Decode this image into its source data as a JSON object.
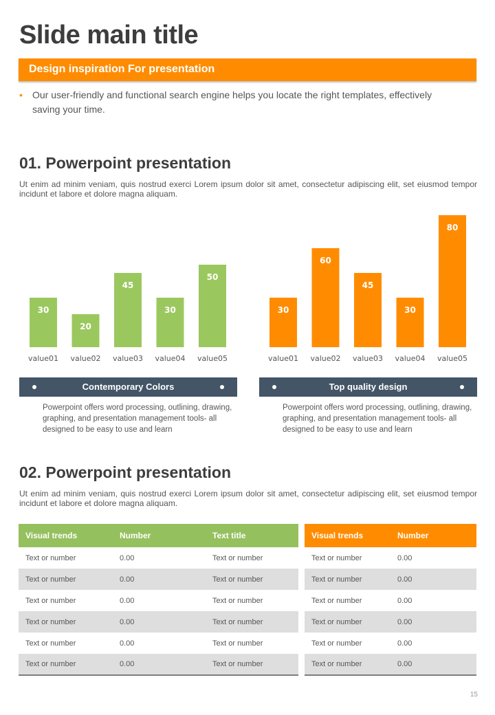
{
  "slide": {
    "title": "Slide main title",
    "banner": "Design inspiration For presentation",
    "bullet": "Our user-friendly and functional search engine helps you locate the right templates, effectively saving your time.",
    "page_number": "15"
  },
  "section1": {
    "title": "01. Powerpoint presentation",
    "description": "Ut enim ad minim veniam, quis nostrud exerci  Lorem ipsum dolor sit amet, consectetur adipiscing elit, set eiusmod tempor incidunt et labore et dolore magna aliquam."
  },
  "section2": {
    "title": "02. Powerpoint presentation",
    "description": "Ut enim ad minim veniam, quis nostrud exerci  Lorem ipsum dolor sit amet, consectetur adipiscing elit, set eiusmod tempor incidunt et labore et dolore magna aliquam."
  },
  "colors": {
    "green": "#9bc85e",
    "orange": "#ff8c00",
    "slate": "#435566"
  },
  "chart_data": [
    {
      "type": "bar",
      "title": "",
      "xlabel": "",
      "ylabel": "",
      "categories": [
        "value01",
        "value02",
        "value03",
        "value04",
        "value05"
      ],
      "values": [
        30,
        20,
        45,
        30,
        50
      ],
      "color": "#9bc85e",
      "ylim": [
        0,
        80
      ],
      "grid": false,
      "data_labels": true
    },
    {
      "type": "bar",
      "title": "",
      "xlabel": "",
      "ylabel": "",
      "categories": [
        "value01",
        "value02",
        "value03",
        "value04",
        "value05"
      ],
      "values": [
        30,
        60,
        45,
        30,
        80
      ],
      "color": "#ff8c00",
      "ylim": [
        0,
        80
      ],
      "grid": false,
      "data_labels": true
    }
  ],
  "features": [
    {
      "title": "Contemporary Colors",
      "text": "Powerpoint offers word processing, outlining, drawing, graphing, and presentation management tools- all designed to be easy to use and learn"
    },
    {
      "title": "Top quality design",
      "text": "Powerpoint offers word processing, outlining, drawing, graphing, and presentation management tools- all designed to be easy to use and learn"
    }
  ],
  "table_left": {
    "headers": [
      "Visual trends",
      "Number",
      "Text title"
    ],
    "rows": [
      [
        "Text or number",
        "0.00",
        "Text or number"
      ],
      [
        "Text or number",
        "0.00",
        "Text or number"
      ],
      [
        "Text or number",
        "0.00",
        "Text or number"
      ],
      [
        "Text or number",
        "0.00",
        "Text or number"
      ],
      [
        "Text or number",
        "0.00",
        "Text or number"
      ],
      [
        "Text or number",
        "0.00",
        "Text or number"
      ]
    ]
  },
  "table_right": {
    "headers": [
      "Visual trends",
      "Number"
    ],
    "rows": [
      [
        "Text or number",
        "0.00"
      ],
      [
        "Text or number",
        "0.00"
      ],
      [
        "Text or number",
        "0.00"
      ],
      [
        "Text or number",
        "0.00"
      ],
      [
        "Text or number",
        "0.00"
      ],
      [
        "Text or number",
        "0.00"
      ]
    ]
  }
}
